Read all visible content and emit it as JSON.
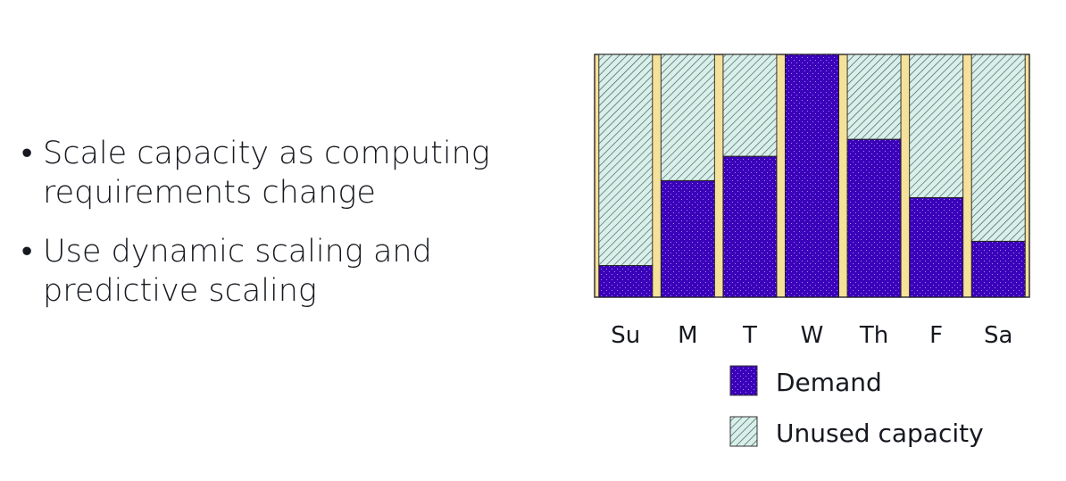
{
  "bullets": [
    "Scale capacity as computing requirements change",
    "Use dynamic scaling and predictive scaling"
  ],
  "chart_data": {
    "type": "bar",
    "stacked": true,
    "categories": [
      "Su",
      "M",
      "T",
      "W",
      "Th",
      "F",
      "Sa"
    ],
    "ylim": [
      0,
      100
    ],
    "series": [
      {
        "name": "Demand",
        "values": [
          13,
          48,
          58,
          100,
          65,
          41,
          23
        ],
        "color": "#3b00b9"
      },
      {
        "name": "Unused capacity",
        "values": [
          87,
          52,
          42,
          0,
          35,
          59,
          77
        ],
        "color": "#d9efe9"
      }
    ],
    "legend": "bottom",
    "grid": false,
    "frame_color": "#f5e199"
  }
}
